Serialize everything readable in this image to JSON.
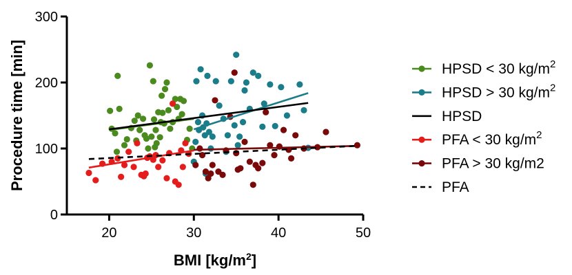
{
  "chart_data": {
    "type": "scatter",
    "xlabel": {
      "base": "BMI [kg/m",
      "sup": "2",
      "end": "]"
    },
    "ylabel": "Procedure time [min]",
    "xlim": [
      15,
      50
    ],
    "ylim": [
      0,
      300
    ],
    "x_ticks": [
      20,
      30,
      40,
      50
    ],
    "y_ticks": [
      0,
      100,
      200,
      300
    ],
    "legend_position": "right",
    "series": [
      {
        "name": "HPSD < 30 kg/m",
        "sup": "2",
        "color": "#4a8a1e",
        "marker": "circle-line",
        "points": [
          [
            20.1,
            157
          ],
          [
            20.3,
            130
          ],
          [
            20.7,
            123
          ],
          [
            20.9,
            95
          ],
          [
            21,
            210
          ],
          [
            21.2,
            160
          ],
          [
            21.8,
            105
          ],
          [
            22.1,
            114
          ],
          [
            22.6,
            131
          ],
          [
            23,
            142
          ],
          [
            23.4,
            150
          ],
          [
            23.6,
            128
          ],
          [
            24,
            145
          ],
          [
            24.2,
            120
          ],
          [
            24.4,
            115
          ],
          [
            24.6,
            100
          ],
          [
            24.8,
            226
          ],
          [
            25,
            118
          ],
          [
            25.2,
            202
          ],
          [
            25.3,
            144
          ],
          [
            25.5,
            128
          ],
          [
            25.6,
            108
          ],
          [
            25.8,
            155
          ],
          [
            26,
            117
          ],
          [
            26.1,
            140
          ],
          [
            26.2,
            180
          ],
          [
            26.3,
            154
          ],
          [
            26.5,
            138
          ],
          [
            26.6,
            190
          ],
          [
            26.8,
            200
          ],
          [
            27,
            158
          ],
          [
            27.2,
            130
          ],
          [
            27.5,
            140
          ],
          [
            27.8,
            175
          ],
          [
            28,
            163
          ],
          [
            28.2,
            145
          ],
          [
            28.4,
            175
          ],
          [
            28.6,
            152
          ],
          [
            28.8,
            172
          ],
          [
            29.2,
            113
          ],
          [
            29.5,
            130
          ],
          [
            29.8,
            100
          ],
          [
            25.4,
            102
          ],
          [
            23.2,
            112
          ]
        ],
        "trend": [
          [
            20,
            128
          ],
          [
            30,
            145
          ]
        ]
      },
      {
        "name": "HPSD > 30 kg/m",
        "sup": "2",
        "color": "#1c7d8a",
        "marker": "circle-line",
        "points": [
          [
            30,
            80
          ],
          [
            30.2,
            110
          ],
          [
            30.3,
            202
          ],
          [
            30.5,
            140
          ],
          [
            30.6,
            128
          ],
          [
            30.8,
            220
          ],
          [
            31,
            150
          ],
          [
            31.1,
            132
          ],
          [
            31.3,
            120
          ],
          [
            31.5,
            138
          ],
          [
            31.6,
            210
          ],
          [
            31.8,
            125
          ],
          [
            32,
            100
          ],
          [
            32.2,
            118
          ],
          [
            32.6,
            202
          ],
          [
            33,
            165
          ],
          [
            33.5,
            145
          ],
          [
            34,
            120
          ],
          [
            34.4,
            202
          ],
          [
            34.8,
            135
          ],
          [
            35,
            242
          ],
          [
            35.4,
            118
          ],
          [
            35.8,
            140
          ],
          [
            36,
            188
          ],
          [
            36.2,
            200
          ],
          [
            36.6,
            160
          ],
          [
            37,
            215
          ],
          [
            37.6,
            210
          ],
          [
            38.1,
            133
          ],
          [
            38.3,
            168
          ],
          [
            39,
            197
          ],
          [
            39.6,
            134
          ],
          [
            40.3,
            193
          ],
          [
            41,
            150
          ],
          [
            42.5,
            197
          ],
          [
            43,
            158
          ],
          [
            43.5,
            101
          ],
          [
            35.2,
            105
          ],
          [
            33.8,
            95
          ],
          [
            31.4,
            62
          ]
        ],
        "trend": [
          [
            30,
            129
          ],
          [
            43.5,
            184
          ]
        ]
      },
      {
        "name": "HPSD",
        "color": "#000000",
        "marker": "solid-line",
        "points": [],
        "trend": [
          [
            20,
            129
          ],
          [
            43.5,
            169
          ]
        ]
      },
      {
        "name": "PFA < 30 kg/m",
        "sup": "2",
        "color": "#e51c1c",
        "marker": "circle-line",
        "points": [
          [
            17.6,
            63
          ],
          [
            18.4,
            52
          ],
          [
            19.2,
            77
          ],
          [
            20.3,
            80
          ],
          [
            21,
            85
          ],
          [
            21.4,
            57
          ],
          [
            21.8,
            75
          ],
          [
            22.3,
            95
          ],
          [
            22.9,
            72
          ],
          [
            23.3,
            108
          ],
          [
            23.8,
            60
          ],
          [
            24.1,
            58
          ],
          [
            24.3,
            62
          ],
          [
            24.5,
            86
          ],
          [
            24.8,
            88
          ],
          [
            25.2,
            83
          ],
          [
            25.5,
            90
          ],
          [
            25.8,
            72
          ],
          [
            26.3,
            82
          ],
          [
            26.8,
            55
          ],
          [
            27.1,
            93
          ],
          [
            27.5,
            168
          ],
          [
            27.8,
            50
          ],
          [
            28.2,
            45
          ],
          [
            28.7,
            72
          ],
          [
            29,
            108
          ],
          [
            29.4,
            92
          ],
          [
            28.5,
            97
          ]
        ],
        "trend": [
          [
            17.6,
            71
          ],
          [
            30,
            97
          ]
        ]
      },
      {
        "name": "PFA > 30 kg/m2",
        "color": "#7a0a0a",
        "marker": "circle-line",
        "points": [
          [
            30.2,
            75
          ],
          [
            30.7,
            100
          ],
          [
            31,
            90
          ],
          [
            31.4,
            65
          ],
          [
            31.7,
            55
          ],
          [
            32,
            62
          ],
          [
            32.2,
            75
          ],
          [
            32.5,
            173
          ],
          [
            32.9,
            65
          ],
          [
            33.4,
            60
          ],
          [
            33.8,
            97
          ],
          [
            34.3,
            148
          ],
          [
            34.8,
            215
          ],
          [
            35,
            93
          ],
          [
            35.2,
            68
          ],
          [
            35.5,
            70
          ],
          [
            36,
            110
          ],
          [
            36.6,
            80
          ],
          [
            37,
            45
          ],
          [
            37.3,
            75
          ],
          [
            37.6,
            70
          ],
          [
            38.1,
            78
          ],
          [
            38.5,
            155
          ],
          [
            39,
            105
          ],
          [
            39.5,
            90
          ],
          [
            40.1,
            103
          ],
          [
            40.6,
            128
          ],
          [
            41.2,
            98
          ],
          [
            41.5,
            85
          ],
          [
            42,
            120
          ],
          [
            43,
            100
          ],
          [
            44.6,
            102
          ],
          [
            45.6,
            125
          ],
          [
            49.3,
            105
          ]
        ],
        "trend": [
          [
            30,
            98
          ],
          [
            49.3,
            104
          ]
        ]
      },
      {
        "name": "PFA",
        "color": "#000000",
        "marker": "dashed-line",
        "points": [],
        "trend": [
          [
            17.6,
            84
          ],
          [
            49.3,
            104
          ]
        ]
      }
    ]
  }
}
